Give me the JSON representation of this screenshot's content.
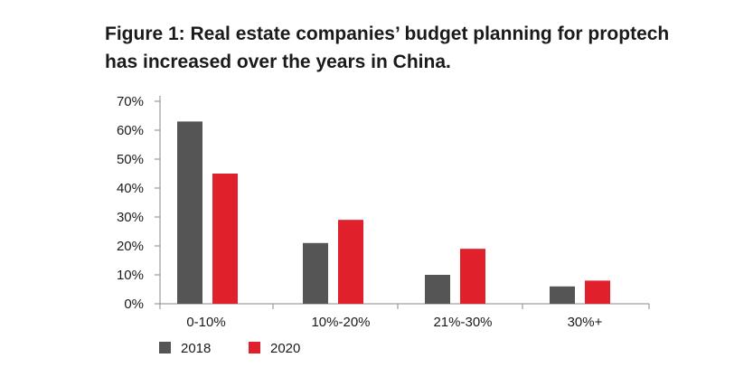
{
  "chart_data": {
    "type": "bar",
    "title": "Figure 1: Real estate companies’ budget planning for proptech has increased over the years in China.",
    "title_lines": [
      "Figure 1: Real estate companies’ budget planning for proptech",
      "has increased over the years in China."
    ],
    "categories": [
      "0-10%",
      "10%-20%",
      "21%-30%",
      "30%+"
    ],
    "series": [
      {
        "name": "2018",
        "color": "#555555",
        "values": [
          63,
          21,
          10,
          6
        ]
      },
      {
        "name": "2020",
        "color": "#e0202a",
        "values": [
          45,
          29,
          19,
          8
        ]
      }
    ],
    "y_ticks": [
      0,
      10,
      20,
      30,
      40,
      50,
      60,
      70
    ],
    "y_tick_labels": [
      "0%",
      "10%",
      "20%",
      "30%",
      "40%",
      "50%",
      "60%",
      "70%"
    ],
    "ylim": [
      0,
      70
    ],
    "xlabel": "",
    "ylabel": "",
    "grid": false,
    "legend_position": "bottom-left"
  }
}
